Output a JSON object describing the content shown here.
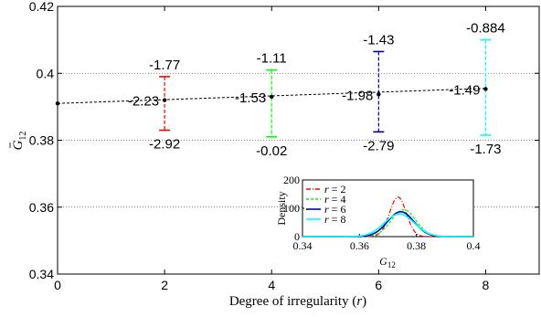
{
  "chart_data": [
    {
      "type": "line",
      "xlabel_prefix": "Degree of irregularity (",
      "xlabel_var": "r",
      "xlabel_suffix": ")",
      "ylabel_base": "G",
      "ylabel_sub": "12",
      "xlim": [
        0,
        9
      ],
      "ylim": [
        0.34,
        0.42
      ],
      "xticks": [
        0,
        2,
        4,
        6,
        8
      ],
      "yticks": [
        0.34,
        0.36,
        0.38,
        0.4,
        0.42
      ],
      "xtick_labels": [
        "0",
        "2",
        "4",
        "6",
        "8"
      ],
      "ytick_labels": [
        "0.34",
        "0.36",
        "0.38",
        "0.4",
        "0.42"
      ],
      "grid": "horizontal-dotted",
      "trend_line": {
        "x": [
          0,
          8
        ],
        "y": [
          0.391,
          0.3955
        ]
      },
      "mean_points": [
        {
          "x": 0,
          "y": 0.391
        },
        {
          "x": 2,
          "y": 0.392
        },
        {
          "x": 4,
          "y": 0.393
        },
        {
          "x": 6,
          "y": 0.3937
        },
        {
          "x": 8,
          "y": 0.3953
        }
      ],
      "error_bars": [
        {
          "x": 2,
          "low": 0.383,
          "high": 0.399,
          "color": "#ff0000",
          "label_top": "-1.77",
          "label_mid": "-2.23",
          "label_bottom": "-2.92"
        },
        {
          "x": 4,
          "low": 0.381,
          "high": 0.401,
          "color": "#00ff00",
          "label_top": "-1.11",
          "label_mid": "-1.53",
          "label_bottom": "-0.02"
        },
        {
          "x": 6,
          "low": 0.3825,
          "high": 0.4065,
          "color": "#0000aa",
          "label_top": "-1.43",
          "label_mid": "-1.98",
          "label_bottom": "-2.79"
        },
        {
          "x": 8,
          "low": 0.3815,
          "high": 0.41,
          "color": "#00ffff",
          "label_top": "-0.884",
          "label_mid": "-1.49",
          "label_bottom": "-1.73"
        }
      ]
    },
    {
      "type": "line",
      "name": "inset-density",
      "xlabel_base": "G",
      "xlabel_sub": "12",
      "ylabel": "Density",
      "xlim": [
        0.34,
        0.4
      ],
      "ylim": [
        0,
        200
      ],
      "xticks": [
        0.34,
        0.36,
        0.38,
        0.4
      ],
      "yticks": [
        0,
        100,
        200
      ],
      "xtick_labels": [
        "0.34",
        "0.36",
        "0.38",
        "0.4"
      ],
      "ytick_labels": [
        "0",
        "100",
        "200"
      ],
      "legend_position": "top-left",
      "series": [
        {
          "name": "r = 2",
          "label_var": "r",
          "label_val": "= 2",
          "color": "#ff0000",
          "dash": "5,2,1,2",
          "mean": 0.3735,
          "sd": 0.0029,
          "peak": 140
        },
        {
          "name": "r = 4",
          "label_var": "r",
          "label_val": "= 4",
          "color": "#00ff00",
          "dash": "3,2",
          "mean": 0.3755,
          "sd": 0.0043,
          "peak": 95
        },
        {
          "name": "r = 6",
          "label_var": "r",
          "label_val": "= 6",
          "color": "#0000aa",
          "dash": "",
          "mean": 0.3745,
          "sd": 0.0046,
          "peak": 88
        },
        {
          "name": "r = 8",
          "label_var": "r",
          "label_val": "= 8",
          "color": "#00ffff",
          "dash": "",
          "mean": 0.374,
          "sd": 0.0052,
          "peak": 80
        }
      ]
    }
  ]
}
